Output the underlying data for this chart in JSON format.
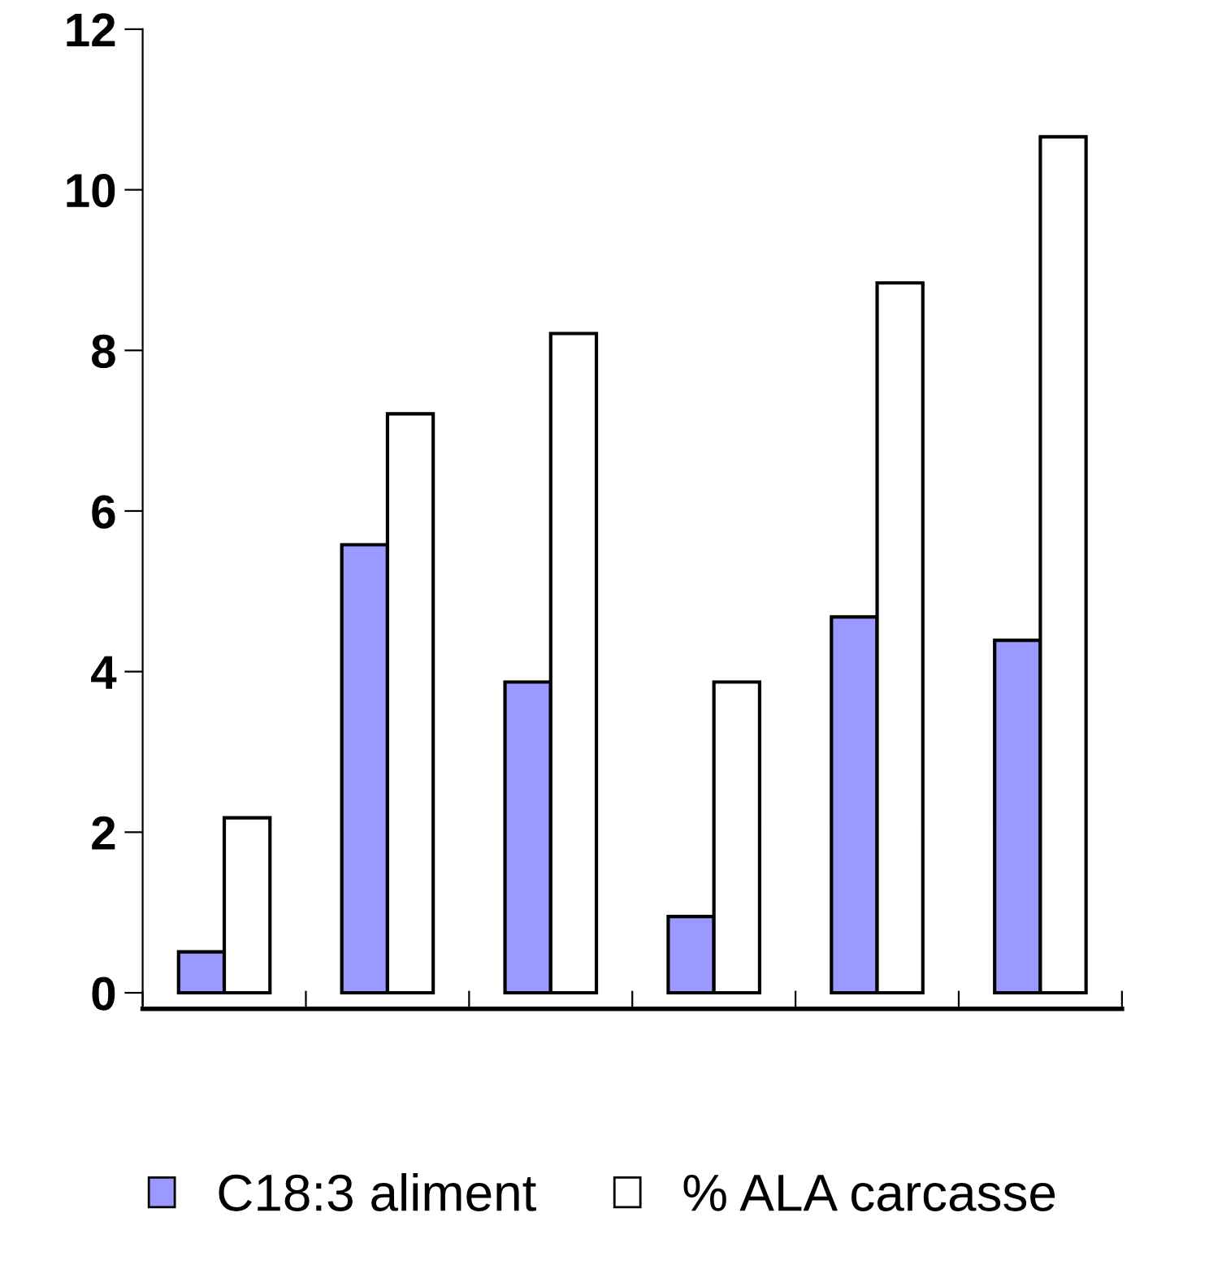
{
  "chart_data": {
    "type": "bar",
    "categories": [
      null,
      null,
      null,
      null,
      null,
      null
    ],
    "series": [
      {
        "name": "C18:3 aliment",
        "color": "#9999ff",
        "values": [
          0.51,
          5.58,
          3.87,
          0.95,
          4.68,
          4.39
        ]
      },
      {
        "name": "% ALA carcasse",
        "color": "#ffffff",
        "values": [
          2.18,
          7.21,
          8.21,
          3.87,
          8.84,
          10.66
        ]
      }
    ],
    "ylim": [
      -0.2,
      12
    ],
    "yticks": [
      0,
      2,
      4,
      6,
      8,
      10,
      12
    ],
    "grid": false,
    "legend": "bottom",
    "tick_labels": "y"
  }
}
